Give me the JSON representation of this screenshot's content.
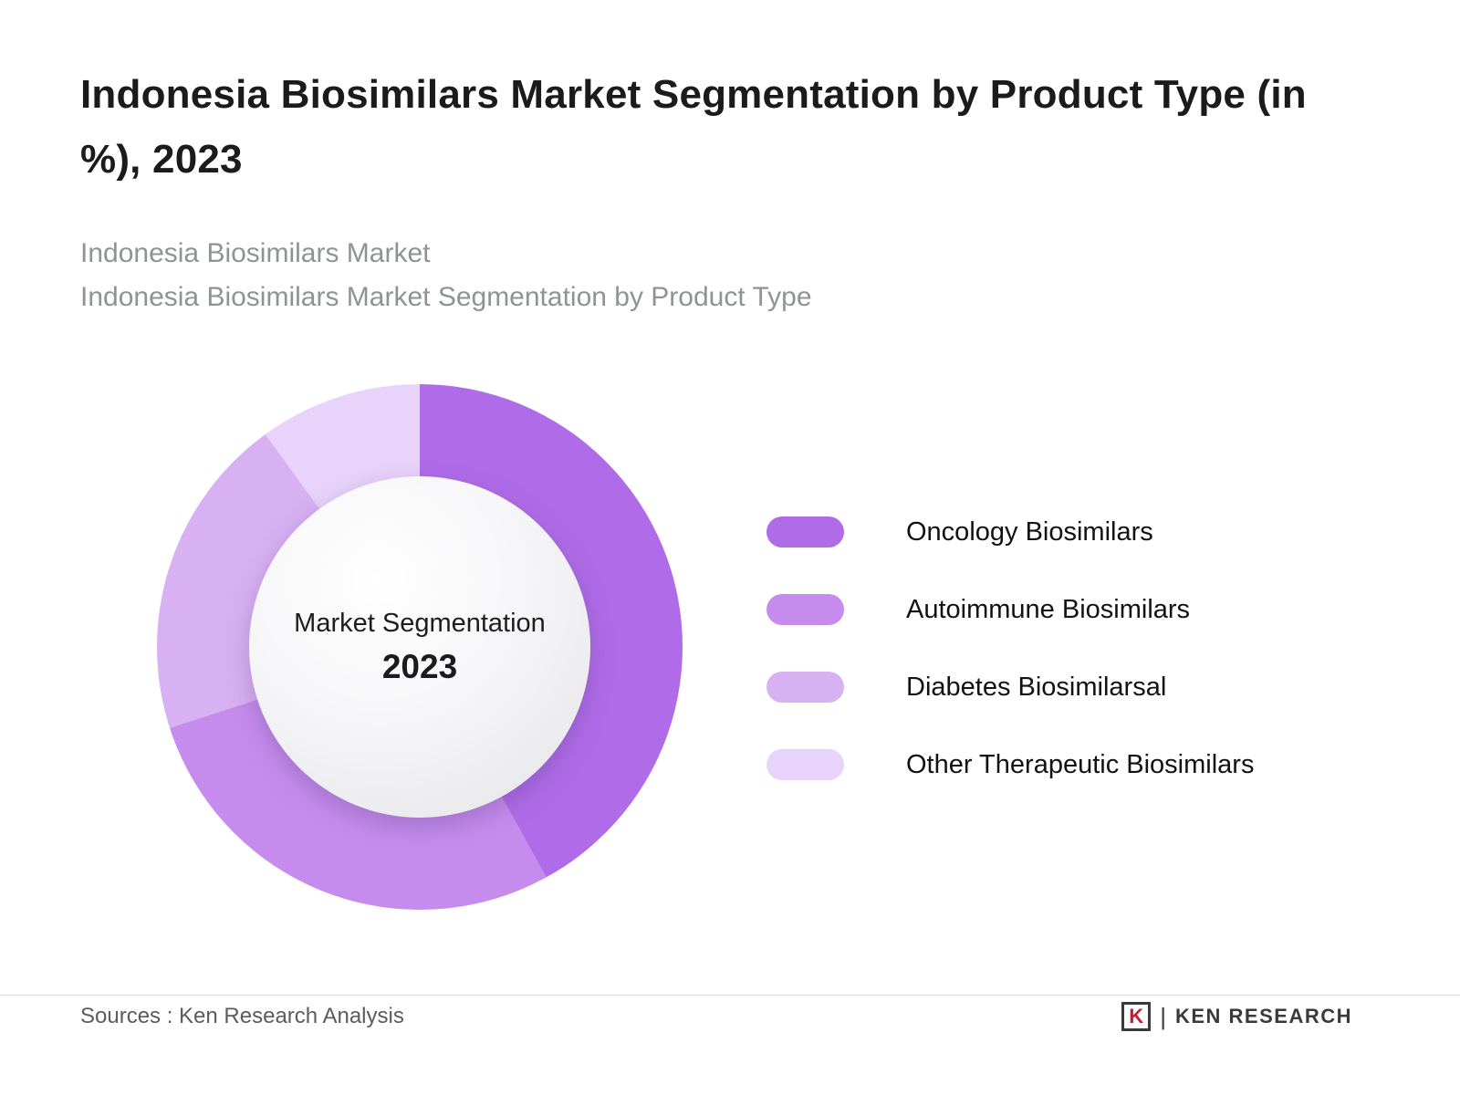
{
  "header": {
    "title": "Indonesia Biosimilars Market Segmentation by Product Type (in %), 2023",
    "subtitle_line1": "Indonesia Biosimilars Market",
    "subtitle_line2": "Indonesia Biosimilars Market Segmentation by Product Type"
  },
  "chart_data": {
    "type": "pie",
    "donut": true,
    "title": "Indonesia Biosimilars Market Segmentation by Product Type (in %), 2023",
    "center_label": "Market Segmentation",
    "center_year": "2023",
    "units": "%",
    "start_angle_deg": 0,
    "direction": "clockwise",
    "legend_position": "right",
    "categories": [
      "Oncology Biosimilars",
      "Autoimmune Biosimilars",
      "Diabetes Biosimilarsal",
      "Other Therapeutic Biosimilars"
    ],
    "values": [
      42,
      28,
      20,
      10
    ],
    "colors": [
      "#b06ce8",
      "#c68ced",
      "#d8b1f3",
      "#e8d3fa"
    ]
  },
  "footer": {
    "source": "Sources : Ken Research Analysis",
    "logo": {
      "letter": "K",
      "separator": "|",
      "brand": "KEN RESEARCH",
      "accent_color": "#c2202f"
    }
  }
}
